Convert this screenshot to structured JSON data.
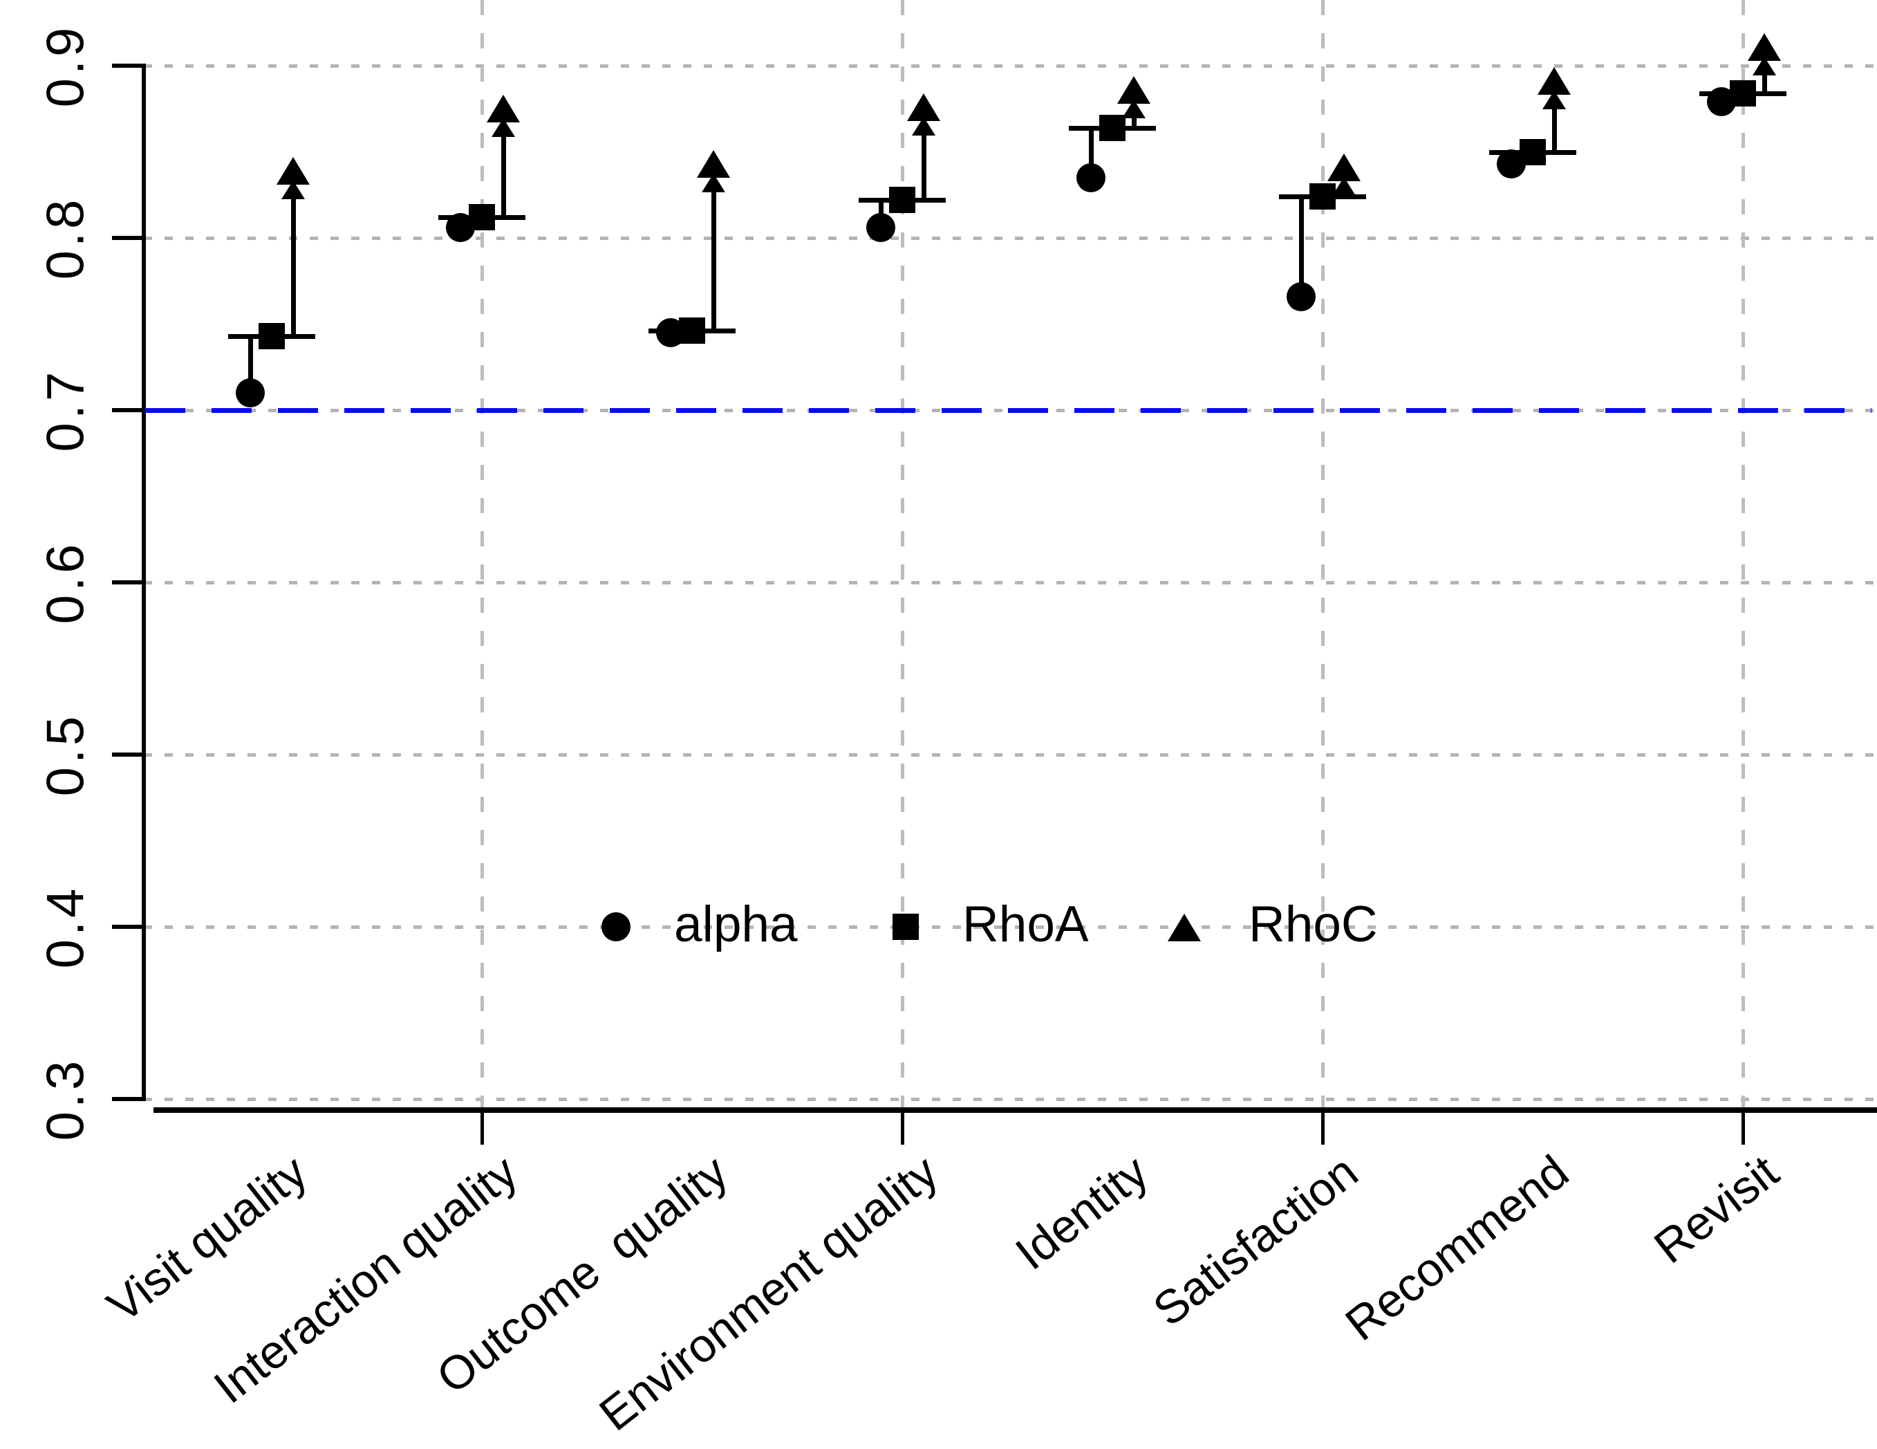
{
  "chart_data": {
    "type": "scatter",
    "title": "",
    "categories": [
      "Visit quality",
      "Interaction quality",
      "Outcome  quality",
      "Environment quality",
      "Identity",
      "Satisfaction",
      "Recommend",
      "Revisit"
    ],
    "series": [
      {
        "name": "alpha",
        "marker": "circle",
        "values": [
          0.71,
          0.806,
          0.745,
          0.806,
          0.835,
          0.766,
          0.843,
          0.879
        ]
      },
      {
        "name": "RhoA",
        "marker": "square",
        "values": [
          0.743,
          0.812,
          0.746,
          0.822,
          0.864,
          0.824,
          0.85,
          0.884
        ]
      },
      {
        "name": "RhoC",
        "marker": "triangle-up",
        "values": [
          0.839,
          0.875,
          0.843,
          0.876,
          0.886,
          0.841,
          0.891,
          0.911
        ]
      }
    ],
    "connectors": "per category: vertical segment links alpha circle up to RhoA crossbar; upward arrow from RhoA crossbar to RhoC triangle",
    "y_axis": {
      "min": 0.3,
      "max": 0.9,
      "tick_step": 0.1,
      "tick_values": [
        0.9,
        0.8,
        0.7,
        0.6,
        0.5,
        0.4,
        0.3
      ],
      "tick_labels": [
        "0.9",
        "0.8",
        "0.7",
        "0.6",
        "0.5",
        "0.4",
        "0.3"
      ]
    },
    "x_axis": {
      "ticked_categories": [
        "Interaction quality",
        "Environment quality",
        "Satisfaction",
        "Revisit"
      ],
      "label_rotation_deg": -38
    },
    "reference_line": {
      "value": 0.7,
      "color": "#0a0aff",
      "style": "dashed"
    },
    "grid": {
      "horizontal": "dotted",
      "vertical": "dashed",
      "color": "#b4b4b4",
      "vertical_at": [
        "Interaction quality",
        "Environment quality",
        "Satisfaction",
        "Revisit"
      ]
    },
    "legend": {
      "position": "center",
      "entries": [
        {
          "marker": "circle",
          "label": "alpha"
        },
        {
          "marker": "square",
          "label": "RhoA"
        },
        {
          "marker": "triangle-up",
          "label": "RhoC"
        }
      ]
    },
    "colors": {
      "marker": "#000000",
      "background": "#ffffff",
      "axis": "#000000",
      "grid": "#b4b4b4",
      "reference": "#0a0aff"
    }
  }
}
